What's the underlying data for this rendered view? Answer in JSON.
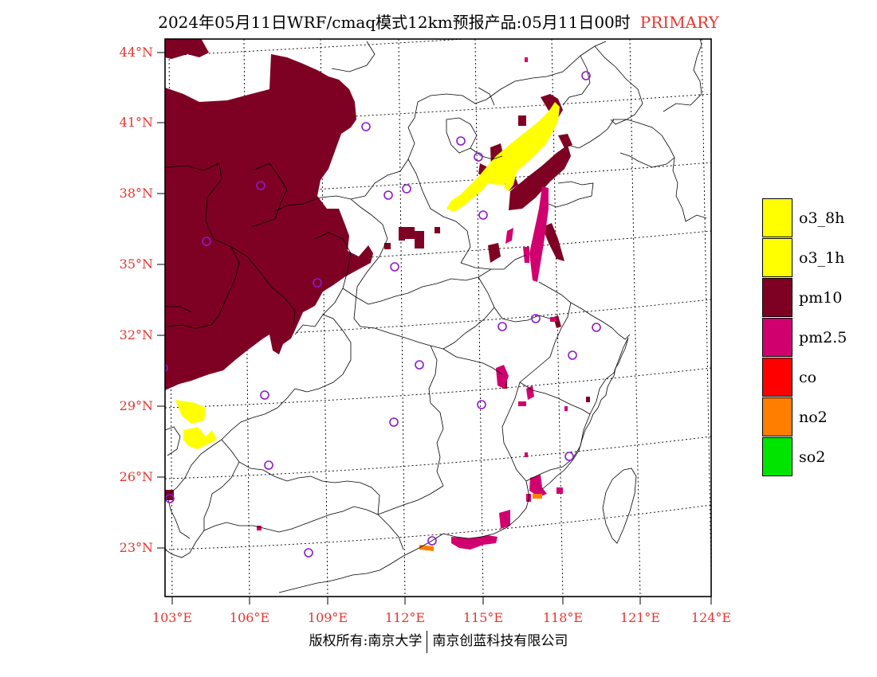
{
  "title": "2024年05月11日WRF/cmaq模式12km预报产品:05月11日00时",
  "title_tag": "PRIMARY",
  "lat_labels": [
    "44°N",
    "41°N",
    "38°N",
    "35°N",
    "32°N",
    "29°N",
    "26°N",
    "23°N"
  ],
  "lon_labels": [
    "103°E",
    "106°E",
    "109°E",
    "112°E",
    "115°E",
    "118°E",
    "121°E",
    "124°E"
  ],
  "legend": [
    {
      "label": "o3_8h",
      "color": "#ffff00"
    },
    {
      "label": "o3_1h",
      "color": "#ffff00"
    },
    {
      "label": "pm10",
      "color": "#7e0023"
    },
    {
      "label": "pm2.5",
      "color": "#d1006f"
    },
    {
      "label": "co",
      "color": "#ff0000"
    },
    {
      "label": "no2",
      "color": "#ff7e00"
    },
    {
      "label": "so2",
      "color": "#00e400"
    }
  ],
  "footer": {
    "left": "版权所有:南京大学",
    "right": "南京创蓝科技有限公司"
  }
}
